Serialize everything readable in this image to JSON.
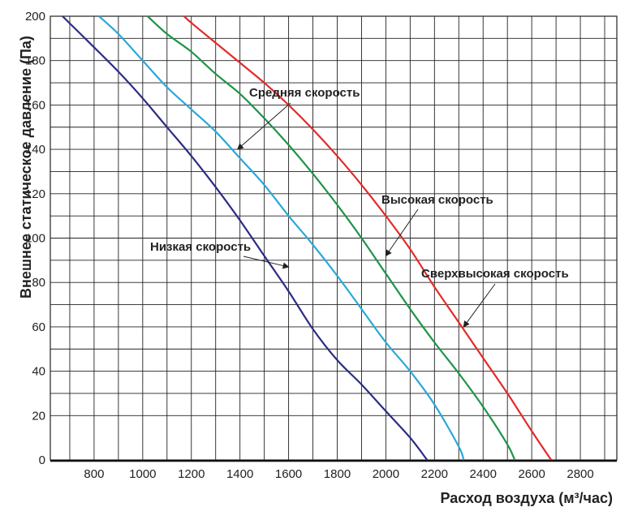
{
  "chart_data": {
    "type": "line",
    "title": "",
    "xlabel": "Расход воздуха (м³/час)",
    "ylabel": "Внешнее статическое давление (Па)",
    "xlim": [
      620,
      2950
    ],
    "ylim": [
      0,
      200
    ],
    "x_ticks": [
      "800",
      "1000",
      "1200",
      "1400",
      "1600",
      "1800",
      "2000",
      "2200",
      "2400",
      "2600",
      "2800"
    ],
    "y_ticks": [
      "0",
      "20",
      "40",
      "60",
      "80",
      "100",
      "120",
      "140",
      "160",
      "180",
      "200"
    ],
    "grid": true,
    "series": [
      {
        "name": "Низкая скорость",
        "color": "#2b2c84",
        "x": [
          670,
          800,
          900,
          1000,
          1100,
          1200,
          1300,
          1400,
          1500,
          1600,
          1700,
          1800,
          1900,
          2000,
          2100,
          2170
        ],
        "y": [
          200,
          186,
          175,
          163,
          150,
          137,
          123,
          108,
          92,
          76,
          59,
          45,
          34,
          22,
          10,
          0
        ]
      },
      {
        "name": "Средняя скорость",
        "color": "#29a8d8",
        "x": [
          820,
          900,
          1000,
          1100,
          1200,
          1300,
          1400,
          1500,
          1600,
          1700,
          1800,
          1900,
          2000,
          2100,
          2200,
          2300,
          2320
        ],
        "y": [
          200,
          192,
          180,
          168,
          158,
          148,
          136,
          124,
          110,
          97,
          83,
          68,
          53,
          40,
          25,
          6,
          0
        ]
      },
      {
        "name": "Высокая скорость",
        "color": "#1e9448",
        "x": [
          1020,
          1100,
          1200,
          1300,
          1400,
          1500,
          1600,
          1700,
          1800,
          1900,
          2000,
          2100,
          2200,
          2300,
          2400,
          2500,
          2530
        ],
        "y": [
          200,
          192,
          184,
          174,
          165,
          154,
          142,
          129,
          115,
          100,
          84,
          68,
          53,
          39,
          24,
          7,
          0
        ]
      },
      {
        "name": "Сверхвысокая скорость",
        "color": "#e32a2a",
        "x": [
          1170,
          1200,
          1300,
          1400,
          1500,
          1600,
          1700,
          1800,
          1900,
          2000,
          2100,
          2200,
          2300,
          2400,
          2500,
          2600,
          2680
        ],
        "y": [
          200,
          197,
          188,
          179,
          170,
          160,
          149,
          137,
          124,
          110,
          95,
          78,
          62,
          46,
          30,
          13,
          0
        ]
      }
    ]
  }
}
